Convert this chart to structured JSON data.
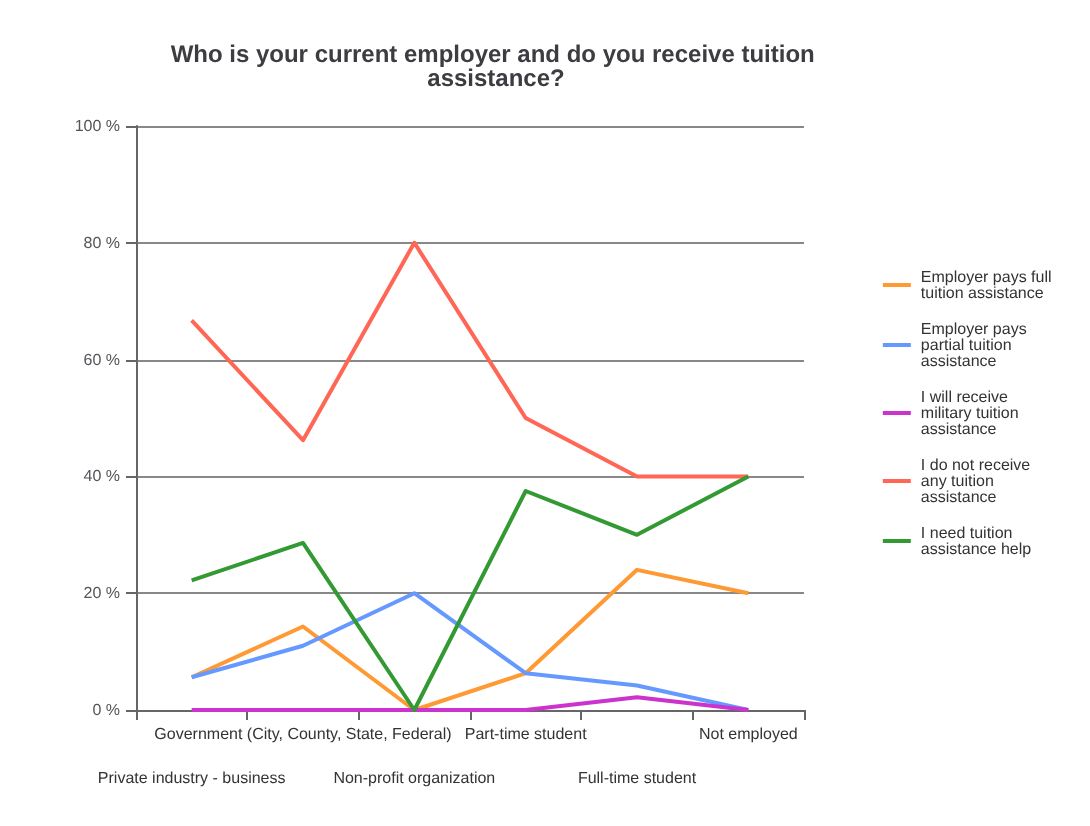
{
  "chart_data": {
    "type": "line",
    "title": "Who is your current employer and do you receive tuition assistance?",
    "categories": [
      "Private industry - business",
      "Government (City, County, State, Federal)",
      "Non-profit organization",
      "Part-time student",
      "Full-time student",
      "Not employed"
    ],
    "series": [
      {
        "name": "Employer pays full tuition assistance",
        "color": "#ff9933",
        "values": [
          5.6,
          14.3,
          0,
          6.3,
          24,
          20
        ]
      },
      {
        "name": "Employer pays partial tuition assistance",
        "color": "#6699ff",
        "values": [
          5.6,
          11,
          20,
          6.3,
          4.2,
          0
        ]
      },
      {
        "name": "I will receive military tuition assistance",
        "color": "#cc33cc",
        "values": [
          0,
          0,
          0,
          0,
          2.2,
          0
        ]
      },
      {
        "name": "I do not receive any tuition assistance",
        "color": "#ff6655",
        "values": [
          66.7,
          46.2,
          80,
          50,
          40,
          40
        ]
      },
      {
        "name": "I need tuition assistance help",
        "color": "#339933",
        "values": [
          22.2,
          28.6,
          0,
          37.5,
          30,
          40
        ]
      }
    ],
    "ylim": [
      0,
      100
    ],
    "yticks": [
      {
        "value": 0,
        "label": "0 %"
      },
      {
        "value": 20,
        "label": "20 %"
      },
      {
        "value": 40,
        "label": "40 %"
      },
      {
        "value": 60,
        "label": "60 %"
      },
      {
        "value": 80,
        "label": "80 %"
      },
      {
        "value": 100,
        "label": "100 %"
      }
    ],
    "grid": "y",
    "legend": "right",
    "marker": "none",
    "line_style": "solid"
  }
}
